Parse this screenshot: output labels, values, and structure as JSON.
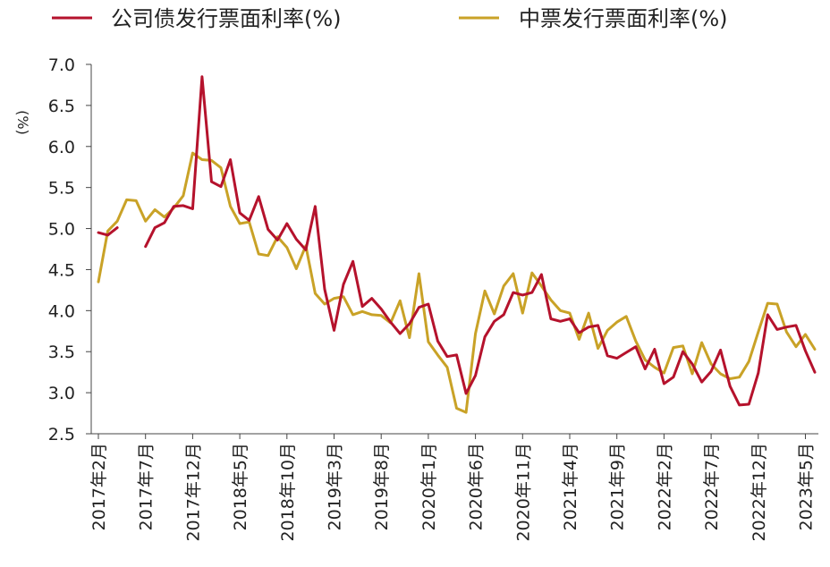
{
  "chart_data": {
    "type": "line",
    "ylabel": "(%)",
    "ylim": [
      2.5,
      7.0
    ],
    "yticks": [
      "7.0",
      "6.5",
      "6.0",
      "5.5",
      "5.0",
      "4.5",
      "4.0",
      "3.5",
      "3.0",
      "2.5"
    ],
    "grid": false,
    "legend_position": "top",
    "x_tick_labels": [
      "2017年2月",
      "2017年7月",
      "2017年12月",
      "2018年5月",
      "2018年10月",
      "2019年3月",
      "2019年8月",
      "2020年1月",
      "2020年6月",
      "2020年11月",
      "2021年4月",
      "2021年9月",
      "2022年2月",
      "2022年7月",
      "2022年12月",
      "2023年5月"
    ],
    "x": [
      "2017-02",
      "2017-03",
      "2017-04",
      "2017-05",
      "2017-06",
      "2017-07",
      "2017-08",
      "2017-09",
      "2017-10",
      "2017-11",
      "2017-12",
      "2018-01",
      "2018-02",
      "2018-03",
      "2018-04",
      "2018-05",
      "2018-06",
      "2018-07",
      "2018-08",
      "2018-09",
      "2018-10",
      "2018-11",
      "2018-12",
      "2019-01",
      "2019-02",
      "2019-03",
      "2019-04",
      "2019-05",
      "2019-06",
      "2019-07",
      "2019-08",
      "2019-09",
      "2019-10",
      "2019-11",
      "2019-12",
      "2020-01",
      "2020-02",
      "2020-03",
      "2020-04",
      "2020-05",
      "2020-06",
      "2020-07",
      "2020-08",
      "2020-09",
      "2020-10",
      "2020-11",
      "2020-12",
      "2021-01",
      "2021-02",
      "2021-03",
      "2021-04",
      "2021-05",
      "2021-06",
      "2021-07",
      "2021-08",
      "2021-09",
      "2021-10",
      "2021-11",
      "2021-12",
      "2022-01",
      "2022-02",
      "2022-03",
      "2022-04",
      "2022-05",
      "2022-06",
      "2022-07",
      "2022-08",
      "2022-09",
      "2022-10",
      "2022-11",
      "2022-12",
      "2023-01",
      "2023-02",
      "2023-03",
      "2023-04",
      "2023-05",
      "2023-06"
    ],
    "series": [
      {
        "name": "公司债发行票面利率(%)",
        "color": "#B5122C",
        "values": [
          4.95,
          4.92,
          5.01,
          null,
          null,
          4.78,
          5.01,
          5.07,
          5.27,
          5.28,
          5.24,
          6.85,
          5.57,
          5.51,
          5.84,
          5.19,
          5.1,
          5.39,
          4.99,
          4.86,
          5.06,
          4.87,
          4.74,
          5.27,
          4.26,
          3.76,
          4.32,
          4.6,
          4.05,
          4.15,
          4.02,
          3.86,
          3.72,
          3.84,
          4.04,
          4.08,
          3.63,
          3.44,
          3.46,
          2.99,
          3.21,
          3.68,
          3.87,
          3.95,
          4.22,
          4.19,
          4.22,
          4.44,
          3.9,
          3.87,
          3.9,
          3.73,
          3.8,
          3.82,
          3.45,
          3.42,
          3.49,
          3.56,
          3.29,
          3.53,
          3.11,
          3.19,
          3.5,
          3.35,
          3.13,
          3.26,
          3.52,
          3.08,
          2.85,
          2.86,
          3.24,
          3.95,
          3.77,
          3.8,
          3.82,
          3.51,
          3.25
        ]
      },
      {
        "name": "中票发行票面利率(%)",
        "color": "#C9A227",
        "values": [
          4.35,
          4.97,
          5.09,
          5.35,
          5.34,
          5.09,
          5.23,
          5.14,
          5.25,
          5.4,
          5.92,
          5.84,
          5.83,
          5.74,
          5.27,
          5.06,
          5.08,
          4.69,
          4.67,
          4.9,
          4.77,
          4.51,
          4.79,
          4.21,
          4.08,
          4.15,
          4.17,
          3.95,
          3.99,
          3.95,
          3.94,
          3.85,
          4.12,
          3.67,
          4.45,
          3.62,
          3.46,
          3.31,
          2.81,
          2.76,
          3.72,
          4.24,
          3.96,
          4.3,
          4.45,
          3.97,
          4.46,
          4.3,
          4.13,
          4.0,
          3.97,
          3.65,
          3.97,
          3.54,
          3.76,
          3.86,
          3.93,
          3.63,
          3.4,
          3.31,
          3.24,
          3.55,
          3.57,
          3.23,
          3.61,
          3.35,
          3.23,
          3.17,
          3.19,
          3.38,
          3.74,
          4.09,
          4.08,
          3.74,
          3.56,
          3.71,
          3.53
        ]
      }
    ]
  }
}
